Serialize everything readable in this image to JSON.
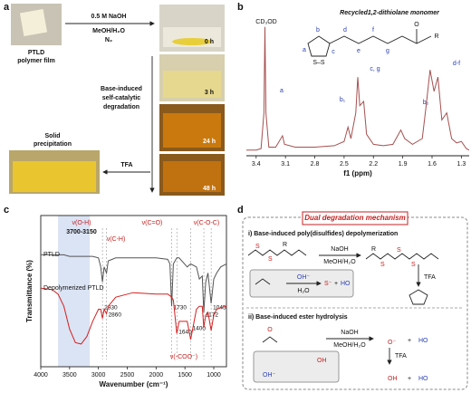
{
  "panel_a": {
    "label": "a",
    "film": [
      "PTLD",
      "polymer film"
    ],
    "conditions": [
      "0.5 M NaOH",
      "MeOH/H₂O",
      "N₂"
    ],
    "times": [
      "0 h",
      "3 h",
      "24 h",
      "48 h"
    ],
    "process": [
      "Base-induced",
      "self-catalytic",
      "degradation"
    ],
    "reagent": "TFA",
    "product": [
      "Solid",
      "precipitation"
    ]
  },
  "chart_data": [
    {
      "type": "line",
      "panel_label": "b",
      "inset_title": "Recycled1,2-dithiolane monomer",
      "structure_labels": [
        "a",
        "b",
        "c",
        "d",
        "e",
        "f",
        "g",
        "O",
        "R",
        "S–S"
      ],
      "x_label": "f1 (ppm)",
      "x": [
        3.5,
        3.4,
        3.35,
        3.32,
        3.31,
        3.3,
        3.27,
        3.2,
        3.13,
        3.11,
        3.0,
        2.8,
        2.6,
        2.5,
        2.46,
        2.43,
        2.38,
        2.36,
        2.34,
        2.3,
        2.27,
        2.2,
        2.1,
        2.0,
        1.92,
        1.88,
        1.8,
        1.7,
        1.66,
        1.62,
        1.58,
        1.54,
        1.5,
        1.45,
        1.4,
        1.35,
        1.3,
        1.25,
        1.22
      ],
      "series": [
        {
          "color": "#a5504f",
          "values": [
            4,
            4,
            5,
            30,
            90,
            30,
            6,
            6,
            14,
            8,
            6,
            6,
            7,
            10,
            20,
            12,
            30,
            55,
            35,
            38,
            15,
            8,
            7,
            8,
            18,
            12,
            8,
            12,
            35,
            60,
            45,
            55,
            25,
            30,
            12,
            9,
            10,
            5,
            4
          ]
        }
      ],
      "peak_labels": [
        "CD₃OD",
        "a",
        "b₁",
        "c, g",
        "b₂",
        "d-f"
      ],
      "xlim": [
        3.5,
        1.22
      ],
      "xticks": [
        3.4,
        3.1,
        2.8,
        2.5,
        2.2,
        1.9,
        1.6,
        1.3
      ],
      "ylim": [
        0,
        100
      ]
    },
    {
      "type": "line",
      "panel_label": "c",
      "x_label": "Wavenumber (cm⁻¹)",
      "y_label": "Transmittance (%)",
      "x": [
        4000,
        3800,
        3700,
        3600,
        3500,
        3400,
        3300,
        3200,
        3100,
        3000,
        2960,
        2930,
        2900,
        2860,
        2830,
        2700,
        2400,
        2000,
        1800,
        1760,
        1730,
        1700,
        1640,
        1600,
        1460,
        1400,
        1300,
        1250,
        1200,
        1172,
        1140,
        1100,
        1045,
        1000,
        950,
        880,
        780
      ],
      "series": [
        {
          "name": "PTLD",
          "color": "#555555",
          "values": [
            74,
            74,
            74,
            74,
            73,
            73,
            73,
            73,
            73,
            72,
            66,
            56,
            66,
            62,
            70,
            72,
            72,
            72,
            71,
            68,
            40,
            68,
            72,
            72,
            66,
            68,
            66,
            58,
            60,
            36,
            56,
            62,
            42,
            58,
            62,
            66,
            68
          ]
        },
        {
          "name": "Depolymerized PTLD",
          "color": "#d42020",
          "values": [
            52,
            51,
            48,
            40,
            25,
            16,
            15,
            20,
            30,
            38,
            38,
            32,
            38,
            35,
            40,
            46,
            49,
            48,
            48,
            47,
            46,
            44,
            22,
            30,
            30,
            18,
            38,
            40,
            40,
            26,
            34,
            36,
            24,
            34,
            38,
            39,
            40
          ]
        }
      ],
      "shaded_range": [
        3700,
        3150
      ],
      "band_labels": [
        "ν(O-H)",
        "3700-3150",
        "ν(C-H)",
        "ν(C=O)",
        "ν(C-O-C)",
        "ν(-COO⁻)"
      ],
      "peak_labels": [
        2930,
        2860,
        1730,
        1172,
        1045,
        1640,
        1400
      ],
      "xlim": [
        4000,
        780
      ],
      "xticks": [
        4000,
        3500,
        3000,
        2500,
        2000,
        1500,
        1000
      ],
      "ylim": [
        0,
        100
      ]
    }
  ],
  "panel_d": {
    "label": "d",
    "title": "Dual degradation mechanism",
    "section_i": {
      "title": "i) Base-induced poly(disulfides) depolymerization",
      "conditions": [
        "NaOH",
        "MeOH/H₂O"
      ],
      "reagent": "TFA",
      "substituent": "R",
      "atom": "S",
      "inset": [
        "OH⁻",
        "H₂O"
      ],
      "thiolate": "S⁻",
      "plus": "+",
      "product": "HO"
    },
    "section_ii": {
      "title": "ii) Base-induced ester hydrolysis",
      "conditions": [
        "NaOH",
        "MeOH/H₂O"
      ],
      "reagent": "TFA",
      "carbonyl": "O",
      "anion": "O⁻",
      "plus": "+",
      "alcohol": "HO",
      "acid": "OH",
      "base": "OH⁻"
    }
  }
}
